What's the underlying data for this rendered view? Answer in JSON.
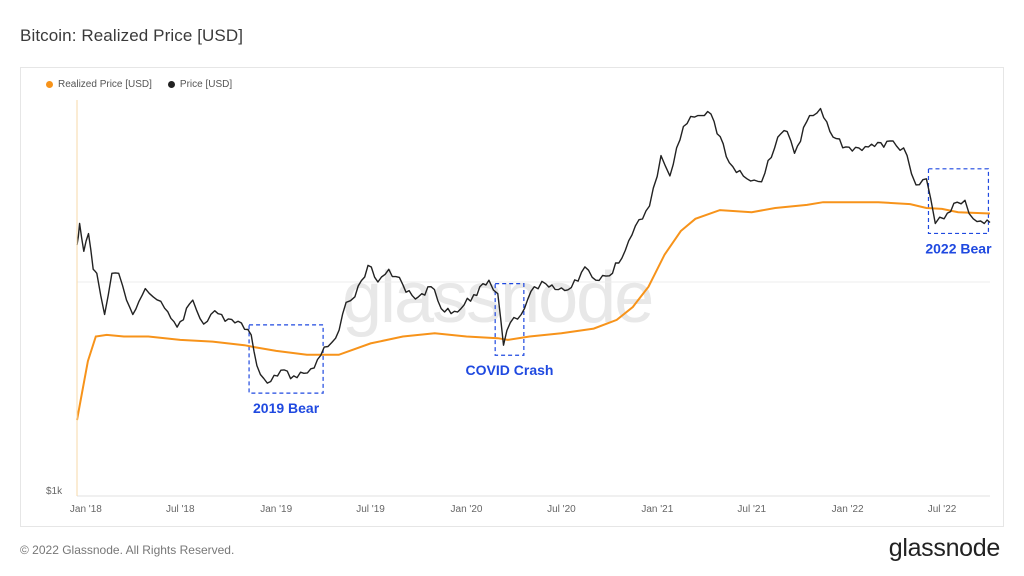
{
  "header": {
    "title": "Bitcoin: Realized Price [USD]"
  },
  "footer": {
    "copyright": "© 2022 Glassnode. All Rights Reserved.",
    "brand": "glassnode"
  },
  "watermark": "glassnode",
  "colors": {
    "realized": "#f7931a",
    "price": "#222222",
    "annotation": "#1f49e0",
    "grid": "#eeeeee"
  },
  "chart_data": {
    "type": "line",
    "title": "Bitcoin: Realized Price [USD]",
    "legend_position": "top-left",
    "y_scale": "log",
    "y_tick_labels": [
      "$1k"
    ],
    "x_tick_labels": [
      "Jan '18",
      "Jul '18",
      "Jan '19",
      "Jul '19",
      "Jan '20",
      "Jul '20",
      "Jan '21",
      "Jul '21",
      "Jan '22",
      "Jul '22"
    ],
    "x_ticks": [
      "2018-01-01",
      "2018-07-01",
      "2019-01-01",
      "2019-07-01",
      "2020-01-01",
      "2020-07-01",
      "2021-01-01",
      "2021-07-01",
      "2022-01-01",
      "2022-07-01"
    ],
    "x_range": [
      "2017-12-15",
      "2022-10-01"
    ],
    "ylim": [
      1000,
      100000
    ],
    "grid": true,
    "series": [
      {
        "name": "Realized Price [USD]",
        "x": [
          "2017-12-15",
          "2017-12-25",
          "2018-01-05",
          "2018-01-20",
          "2018-02-10",
          "2018-03-15",
          "2018-05-01",
          "2018-07-01",
          "2018-09-01",
          "2018-11-01",
          "2018-11-20",
          "2019-01-01",
          "2019-03-01",
          "2019-05-01",
          "2019-07-01",
          "2019-09-01",
          "2019-11-01",
          "2020-01-01",
          "2020-03-01",
          "2020-03-20",
          "2020-05-01",
          "2020-07-01",
          "2020-09-01",
          "2020-10-15",
          "2020-11-15",
          "2020-12-15",
          "2021-01-15",
          "2021-02-15",
          "2021-03-15",
          "2021-05-01",
          "2021-07-01",
          "2021-08-15",
          "2021-10-15",
          "2021-11-15",
          "2022-01-01",
          "2022-03-01",
          "2022-05-01",
          "2022-06-01",
          "2022-07-01",
          "2022-08-01",
          "2022-10-01"
        ],
        "values": [
          2200,
          3000,
          4200,
          5500,
          5600,
          5500,
          5500,
          5300,
          5200,
          5000,
          4900,
          4700,
          4500,
          4500,
          5100,
          5500,
          5700,
          5500,
          5400,
          5300,
          5500,
          5700,
          6000,
          6600,
          7600,
          9500,
          13500,
          17500,
          20000,
          22000,
          21500,
          22500,
          23300,
          24000,
          24000,
          24000,
          23500,
          22500,
          22300,
          21500,
          21200
        ]
      },
      {
        "name": "Price [USD]",
        "x": [
          "2017-12-15",
          "2017-12-20",
          "2017-12-28",
          "2018-01-06",
          "2018-01-15",
          "2018-01-22",
          "2018-02-06",
          "2018-02-20",
          "2018-03-05",
          "2018-03-20",
          "2018-04-01",
          "2018-04-25",
          "2018-05-10",
          "2018-06-01",
          "2018-06-25",
          "2018-07-25",
          "2018-08-15",
          "2018-09-05",
          "2018-09-25",
          "2018-10-20",
          "2018-11-14",
          "2018-11-25",
          "2018-12-15",
          "2019-01-10",
          "2019-02-10",
          "2019-03-15",
          "2019-04-03",
          "2019-04-25",
          "2019-05-15",
          "2019-06-01",
          "2019-06-26",
          "2019-07-15",
          "2019-08-05",
          "2019-09-01",
          "2019-09-25",
          "2019-10-25",
          "2019-11-20",
          "2019-12-15",
          "2020-01-15",
          "2020-02-13",
          "2020-03-01",
          "2020-03-12",
          "2020-03-25",
          "2020-04-15",
          "2020-05-10",
          "2020-06-01",
          "2020-06-25",
          "2020-07-20",
          "2020-08-15",
          "2020-09-05",
          "2020-10-01",
          "2020-10-25",
          "2020-11-20",
          "2020-12-17",
          "2021-01-08",
          "2021-01-25",
          "2021-02-20",
          "2021-03-13",
          "2021-04-14",
          "2021-05-19",
          "2021-06-22",
          "2021-07-20",
          "2021-08-20",
          "2021-09-07",
          "2021-09-21",
          "2021-10-20",
          "2021-11-10",
          "2021-12-04",
          "2022-01-10",
          "2022-02-10",
          "2022-03-29",
          "2022-04-25",
          "2022-05-12",
          "2022-06-01",
          "2022-06-18",
          "2022-07-05",
          "2022-07-30",
          "2022-08-14",
          "2022-08-30",
          "2022-09-20",
          "2022-10-01"
        ],
        "values": [
          15000,
          19000,
          14000,
          17000,
          11500,
          11000,
          7000,
          11000,
          11000,
          8200,
          7000,
          9300,
          8500,
          7500,
          6100,
          8200,
          6300,
          7300,
          6500,
          6500,
          5600,
          4000,
          3300,
          3800,
          3500,
          3900,
          4900,
          5400,
          8000,
          8500,
          12000,
          10000,
          11500,
          9700,
          8300,
          9500,
          7200,
          7200,
          8700,
          10200,
          8800,
          5000,
          6400,
          7000,
          9500,
          9800,
          9200,
          9400,
          11800,
          10200,
          10700,
          13000,
          18500,
          23000,
          40000,
          32000,
          55000,
          61000,
          63000,
          37000,
          31000,
          30000,
          49000,
          52000,
          41000,
          62000,
          67000,
          49000,
          42000,
          44000,
          47000,
          40000,
          29000,
          31000,
          19000,
          20000,
          24000,
          24500,
          20000,
          19000,
          19200
        ]
      }
    ],
    "annotations": [
      {
        "label": "2019 Bear",
        "x0": "2018-11-10",
        "x1": "2019-04-01"
      },
      {
        "label": "COVID Crash",
        "x0": "2020-02-25",
        "x1": "2020-04-20"
      },
      {
        "label": "2022 Bear",
        "x0": "2022-06-05",
        "x1": "2022-09-28"
      }
    ]
  }
}
